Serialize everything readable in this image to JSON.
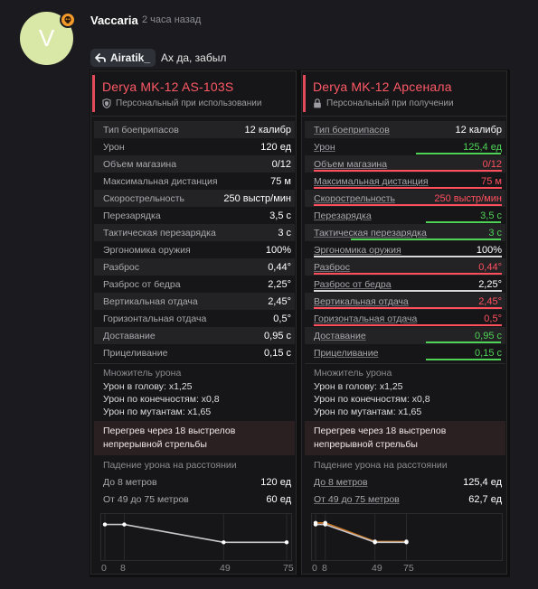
{
  "message": {
    "avatar_letter": "V",
    "username": "Vaccaria",
    "timestamp": "2 часа назад",
    "reply_to": "Airatik_",
    "text": "Ах да, забыл"
  },
  "colors": {
    "accent": "#e34b5a",
    "better": "#4fd356",
    "worse": "#ff4f5d",
    "curve_primary": "#c8c8cc",
    "curve_compare": "#c8731f"
  },
  "panels": [
    {
      "weapon_name": "Derya MK-12 AS-103S",
      "bind": "Персональный при использовании",
      "bind_icon": "shield-icon",
      "stats": [
        {
          "name": "Тип боеприпасов",
          "value": "12 калибр",
          "cmp": ""
        },
        {
          "name": "Урон",
          "value": "120 ед",
          "cmp": ""
        },
        {
          "name": "Объем магазина",
          "value": "0/12",
          "cmp": ""
        },
        {
          "name": "Максимальная дистанция",
          "value": "75 м",
          "cmp": ""
        },
        {
          "name": "Скорострельность",
          "value": "250 выстр/мин",
          "cmp": ""
        },
        {
          "name": "Перезарядка",
          "value": "3,5 с",
          "cmp": ""
        },
        {
          "name": "Тактическая перезарядка",
          "value": "3 с",
          "cmp": ""
        },
        {
          "name": "Эргономика оружия",
          "value": "100%",
          "cmp": ""
        },
        {
          "name": "Разброс",
          "value": "0,44°",
          "cmp": ""
        },
        {
          "name": "Разброс от бедра",
          "value": "2,25°",
          "cmp": ""
        },
        {
          "name": "Вертикальная отдача",
          "value": "2,45°",
          "cmp": ""
        },
        {
          "name": "Горизонтальная отдача",
          "value": "0,5°",
          "cmp": ""
        },
        {
          "name": "Доставание",
          "value": "0,95 с",
          "cmp": ""
        },
        {
          "name": "Прицеливание",
          "value": "0,15 с",
          "cmp": ""
        }
      ],
      "multiplier_title": "Множитель урона",
      "multipliers": [
        "Урон в голову: x1,25",
        "Урон по конечностям: x0,8",
        "Урон по мутантам: x1,65"
      ],
      "overheat": [
        "Перегрев через 18 выстрелов",
        "непрерывной стрельбы"
      ],
      "falloff_title": "Падение урона на расстоянии",
      "falloff": [
        {
          "name": "До 8 метров",
          "value": "120 ед"
        },
        {
          "name": "От 49 до 75 метров",
          "value": "60 ед"
        }
      ],
      "chart_data": {
        "type": "line",
        "x": [
          0,
          8,
          49,
          75
        ],
        "series": [
          {
            "values": [
              120,
              120,
              60,
              60
            ]
          }
        ],
        "ylim": [
          0,
          140
        ],
        "xlim": [
          0,
          75
        ],
        "x_ticks": [
          "0",
          "8",
          "49",
          "75"
        ]
      }
    },
    {
      "weapon_name": "Derya MK-12 Арсенала",
      "bind": "Персональный при получении",
      "bind_icon": "lock-icon",
      "stats": [
        {
          "name": "Тип боеприпасов",
          "value": "12 калибр",
          "cmp": ""
        },
        {
          "name": "Урон",
          "value": "125,4 ед",
          "cmp": "pos",
          "bar": 0.45
        },
        {
          "name": "Объем магазина",
          "value": "0/12",
          "cmp": "neg",
          "bar": 1.0
        },
        {
          "name": "Максимальная дистанция",
          "value": "75 м",
          "cmp": "neg",
          "bar": 1.0
        },
        {
          "name": "Скорострельность",
          "value": "250 выстр/мин",
          "cmp": "neg",
          "bar": 1.0
        },
        {
          "name": "Перезарядка",
          "value": "3,5 с",
          "cmp": "pos",
          "bar": 0.4
        },
        {
          "name": "Тактическая перезарядка",
          "value": "3 с",
          "cmp": "pos",
          "bar": 0.8
        },
        {
          "name": "Эргономика оружия",
          "value": "100%",
          "cmp": "same",
          "bar": 1.0
        },
        {
          "name": "Разброс",
          "value": "0,44°",
          "cmp": "neg",
          "bar": 1.0
        },
        {
          "name": "Разброс от бедра",
          "value": "2,25°",
          "cmp": "same",
          "bar": 1.0
        },
        {
          "name": "Вертикальная отдача",
          "value": "2,45°",
          "cmp": "neg",
          "bar": 1.0
        },
        {
          "name": "Горизонтальная отдача",
          "value": "0,5°",
          "cmp": "neg",
          "bar": 1.0
        },
        {
          "name": "Доставание",
          "value": "0,95 с",
          "cmp": "pos",
          "bar": 0.4
        },
        {
          "name": "Прицеливание",
          "value": "0,15 с",
          "cmp": "pos",
          "bar": 0.4
        }
      ],
      "multiplier_title": "Множитель урона",
      "multipliers": [
        "Урон в голову: x1,25",
        "Урон по конечностям: x0,8",
        "Урон по мутантам: x1,65"
      ],
      "overheat": [
        "Перегрев через 18 выстрелов",
        "непрерывной стрельбы"
      ],
      "falloff_title": "Падение урона на расстоянии",
      "falloff": [
        {
          "name": "До 8 метров",
          "value": "125,4 ед"
        },
        {
          "name": "От 49 до 75 метров",
          "value": "62,7 ед"
        }
      ],
      "chart_data": {
        "type": "line",
        "x": [
          0,
          8,
          49,
          75
        ],
        "series": [
          {
            "values": [
              125.4,
              125.4,
              62.7,
              62.7
            ]
          },
          {
            "values": [
              120,
              120,
              60,
              60
            ]
          }
        ],
        "ylim": [
          0,
          140
        ],
        "xlim": [
          0,
          150
        ],
        "x_ticks": [
          "0",
          "8",
          "49",
          "75"
        ]
      }
    }
  ]
}
